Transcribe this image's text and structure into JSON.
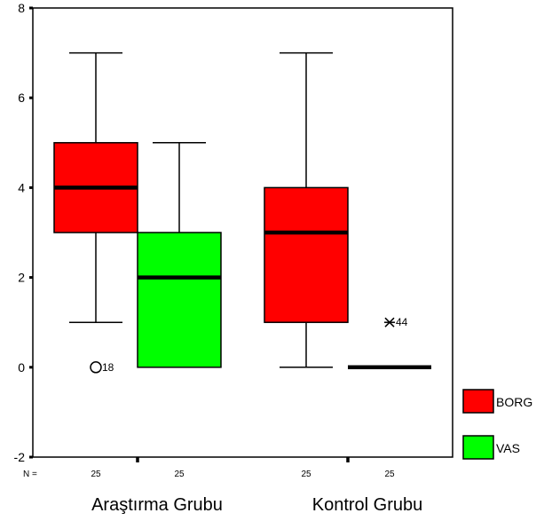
{
  "chart_data": {
    "type": "boxplot",
    "ylim": [
      -2,
      8
    ],
    "yticks": [
      "-2",
      "0",
      "2",
      "4",
      "6",
      "8"
    ],
    "groups": [
      "Araştırma Grubu",
      "Kontrol Grubu"
    ],
    "n_prefix": "N =",
    "series": [
      {
        "name": "BORG",
        "color": "#ff0000"
      },
      {
        "name": "VAS",
        "color": "#00ff00"
      }
    ],
    "boxes": [
      {
        "group": 0,
        "series": 0,
        "n": "25",
        "min": 1,
        "q1": 3,
        "median": 4,
        "q3": 5,
        "max": 7,
        "outliers": [
          {
            "value": 0,
            "label": "18",
            "marker": "circle"
          }
        ]
      },
      {
        "group": 0,
        "series": 1,
        "n": "25",
        "min": 0,
        "q1": 0,
        "median": 2,
        "q3": 3,
        "max": 5,
        "outliers": []
      },
      {
        "group": 1,
        "series": 0,
        "n": "25",
        "min": 0,
        "q1": 1,
        "median": 3,
        "q3": 4,
        "max": 7,
        "outliers": []
      },
      {
        "group": 1,
        "series": 1,
        "n": "25",
        "min": 0,
        "q1": 0,
        "median": 0,
        "q3": 0,
        "max": 0,
        "outliers": [
          {
            "value": 1,
            "label": "44",
            "marker": "star"
          }
        ]
      }
    ]
  }
}
